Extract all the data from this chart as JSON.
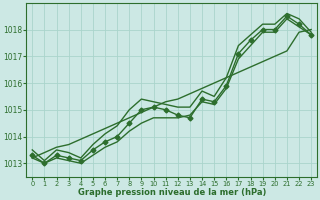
{
  "xlabel": "Graphe pression niveau de la mer (hPa)",
  "background_color": "#cce8e4",
  "grid_color": "#aad4cc",
  "line_color": "#2d6e2d",
  "x_hours": [
    0,
    1,
    2,
    3,
    4,
    5,
    6,
    7,
    8,
    9,
    10,
    11,
    12,
    13,
    14,
    15,
    16,
    17,
    18,
    19,
    20,
    21,
    22,
    23
  ],
  "y_actual": [
    1013.3,
    1013.0,
    1013.3,
    1013.2,
    1013.1,
    1013.5,
    1013.8,
    1014.0,
    1014.5,
    1015.0,
    1015.1,
    1015.0,
    1014.8,
    1014.7,
    1015.4,
    1015.3,
    1015.9,
    1017.1,
    1017.6,
    1018.0,
    1018.0,
    1018.5,
    1018.2,
    1017.8
  ],
  "y_min": [
    1013.2,
    1013.0,
    1013.2,
    1013.1,
    1013.0,
    1013.3,
    1013.6,
    1013.8,
    1014.2,
    1014.5,
    1014.7,
    1014.7,
    1014.7,
    1014.8,
    1015.3,
    1015.2,
    1015.8,
    1016.9,
    1017.4,
    1017.9,
    1017.9,
    1018.4,
    1018.1,
    1017.8
  ],
  "y_max": [
    1013.5,
    1013.1,
    1013.5,
    1013.4,
    1013.2,
    1013.7,
    1014.1,
    1014.4,
    1015.0,
    1015.4,
    1015.3,
    1015.2,
    1015.1,
    1015.1,
    1015.7,
    1015.5,
    1016.2,
    1017.4,
    1017.8,
    1018.2,
    1018.2,
    1018.6,
    1018.4,
    1017.9
  ],
  "y_trend": [
    1013.2,
    1013.4,
    1013.6,
    1013.7,
    1013.9,
    1014.1,
    1014.3,
    1014.5,
    1014.7,
    1014.9,
    1015.1,
    1015.3,
    1015.4,
    1015.6,
    1015.8,
    1016.0,
    1016.2,
    1016.4,
    1016.6,
    1016.8,
    1017.0,
    1017.2,
    1017.9,
    1018.0
  ],
  "ylim": [
    1012.5,
    1019.0
  ],
  "yticks": [
    1013,
    1014,
    1015,
    1016,
    1017,
    1018
  ],
  "marker": "D",
  "markersize": 2.5,
  "linewidth": 1.0,
  "figsize": [
    3.2,
    2.0
  ],
  "dpi": 100
}
